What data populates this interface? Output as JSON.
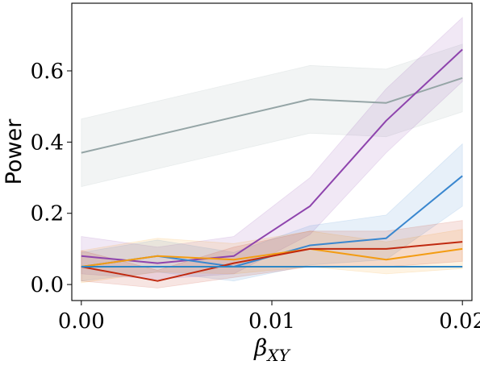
{
  "chart_data": {
    "type": "line",
    "xlabel_main": "β",
    "xlabel_sub": "XY",
    "ylabel": "Power",
    "xlim": [
      -0.0005,
      0.0205
    ],
    "ylim": [
      -0.045,
      0.79
    ],
    "x_ticks": [
      0.0,
      0.01,
      0.02
    ],
    "x_tick_labels": [
      "0.00",
      "0.01",
      "0.02"
    ],
    "y_ticks": [
      0.0,
      0.2,
      0.4,
      0.6
    ],
    "y_tick_labels": [
      "0.0",
      "0.2",
      "0.4",
      "0.6"
    ],
    "grid": false,
    "series": [
      {
        "color": "#95a5a6",
        "x": [
          0.0,
          0.012,
          0.016,
          0.02
        ],
        "values": [
          0.37,
          0.52,
          0.51,
          0.58
        ],
        "lower": [
          0.275,
          0.425,
          0.415,
          0.485
        ],
        "upper": [
          0.465,
          0.615,
          0.605,
          0.675
        ]
      },
      {
        "color": "#8e44ad",
        "x": [
          0.0,
          0.004,
          0.008,
          0.012,
          0.016,
          0.02
        ],
        "values": [
          0.08,
          0.06,
          0.08,
          0.22,
          0.46,
          0.66
        ],
        "lower": [
          0.03,
          0.015,
          0.03,
          0.14,
          0.37,
          0.57
        ],
        "upper": [
          0.135,
          0.105,
          0.135,
          0.3,
          0.55,
          0.75
        ]
      },
      {
        "color": "#3a87cf",
        "x": [
          0.0,
          0.004,
          0.008,
          0.012,
          0.016,
          0.02
        ],
        "values": [
          0.05,
          0.08,
          0.05,
          0.11,
          0.13,
          0.305
        ],
        "lower": [
          0.01,
          0.035,
          0.01,
          0.055,
          0.07,
          0.22
        ],
        "upper": [
          0.09,
          0.125,
          0.09,
          0.165,
          0.195,
          0.395
        ]
      },
      {
        "color": "#f39c12",
        "x": [
          0.0,
          0.004,
          0.008,
          0.012,
          0.016,
          0.02
        ],
        "values": [
          0.05,
          0.08,
          0.07,
          0.1,
          0.07,
          0.1
        ],
        "lower": [
          0.005,
          0.035,
          0.03,
          0.05,
          0.03,
          0.045
        ],
        "upper": [
          0.095,
          0.13,
          0.115,
          0.15,
          0.12,
          0.155
        ]
      },
      {
        "color": "#c0290f",
        "x": [
          0.0,
          0.004,
          0.008,
          0.012,
          0.016,
          0.02
        ],
        "values": [
          0.05,
          0.01,
          0.06,
          0.1,
          0.1,
          0.12
        ],
        "lower": [
          0.01,
          -0.01,
          0.02,
          0.05,
          0.05,
          0.065
        ],
        "upper": [
          0.095,
          0.04,
          0.105,
          0.15,
          0.15,
          0.18
        ]
      },
      {
        "color": "#2f86c4",
        "x": [
          0.0,
          0.004,
          0.008,
          0.012,
          0.016,
          0.02
        ],
        "values": [
          0.05,
          0.05,
          0.05,
          0.05,
          0.05,
          0.05
        ],
        "lower": [
          0.05,
          0.05,
          0.05,
          0.05,
          0.05,
          0.05
        ],
        "upper": [
          0.05,
          0.05,
          0.05,
          0.05,
          0.05,
          0.05
        ]
      }
    ]
  }
}
